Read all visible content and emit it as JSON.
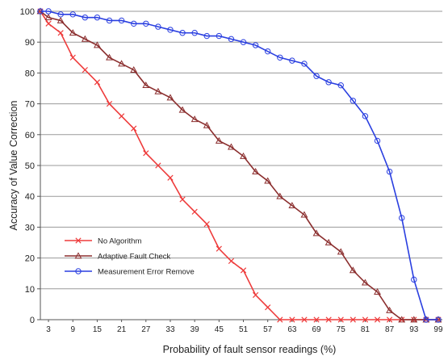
{
  "chart_data": {
    "type": "line",
    "title": "",
    "xlabel": "Probability of fault sensor readings (%)",
    "ylabel": "Accuracy of Value Correction",
    "x_tick_labels": [
      "3",
      "9",
      "15",
      "21",
      "27",
      "33",
      "39",
      "45",
      "51",
      "57",
      "63",
      "69",
      "75",
      "81",
      "87",
      "93",
      "99"
    ],
    "x_tick_values": [
      3,
      9,
      15,
      21,
      27,
      33,
      39,
      45,
      51,
      57,
      63,
      69,
      75,
      81,
      87,
      93,
      99
    ],
    "xlim": [
      1,
      100
    ],
    "ylim": [
      0,
      100
    ],
    "y_ticks": [
      0,
      10,
      20,
      30,
      40,
      50,
      60,
      70,
      80,
      90,
      100
    ],
    "y_tick_labels": [
      "0",
      "10",
      "20",
      "30",
      "40",
      "50",
      "60",
      "70",
      "80",
      "90",
      "100"
    ],
    "grid": "horizontal",
    "legend_position": "bottom-left",
    "x": [
      1,
      3,
      6,
      9,
      12,
      15,
      18,
      21,
      24,
      27,
      30,
      33,
      36,
      39,
      42,
      45,
      48,
      51,
      54,
      57,
      60,
      63,
      66,
      69,
      72,
      75,
      78,
      81,
      84,
      87,
      90,
      93,
      96,
      99
    ],
    "series": [
      {
        "name": "No Algorithm",
        "color": "#ee3b3b",
        "marker": "x",
        "values": [
          100,
          96,
          93,
          85,
          81,
          77,
          70,
          66,
          62,
          54,
          50,
          46,
          39,
          35,
          31,
          23,
          19,
          16,
          8,
          4,
          0,
          0,
          0,
          0,
          0,
          0,
          0,
          0,
          0,
          0,
          0,
          0,
          0,
          0
        ]
      },
      {
        "name": "Adaptive Fault Check",
        "color": "#8b2e2e",
        "marker": "triangle",
        "values": [
          100,
          98,
          97,
          93,
          91,
          89,
          85,
          83,
          81,
          76,
          74,
          72,
          68,
          65,
          63,
          58,
          56,
          53,
          48,
          45,
          40,
          37,
          34,
          28,
          25,
          22,
          16,
          12,
          9,
          3,
          0,
          0,
          0,
          0
        ]
      },
      {
        "name": "Measurement Error Remove",
        "color": "#2a3fe0",
        "marker": "circle",
        "values": [
          100,
          100,
          99,
          99,
          98,
          98,
          97,
          97,
          96,
          96,
          95,
          94,
          93,
          93,
          92,
          92,
          91,
          90,
          89,
          87,
          85,
          84,
          83,
          79,
          77,
          76,
          71,
          66,
          58,
          48,
          33,
          13,
          0,
          0
        ]
      }
    ]
  }
}
